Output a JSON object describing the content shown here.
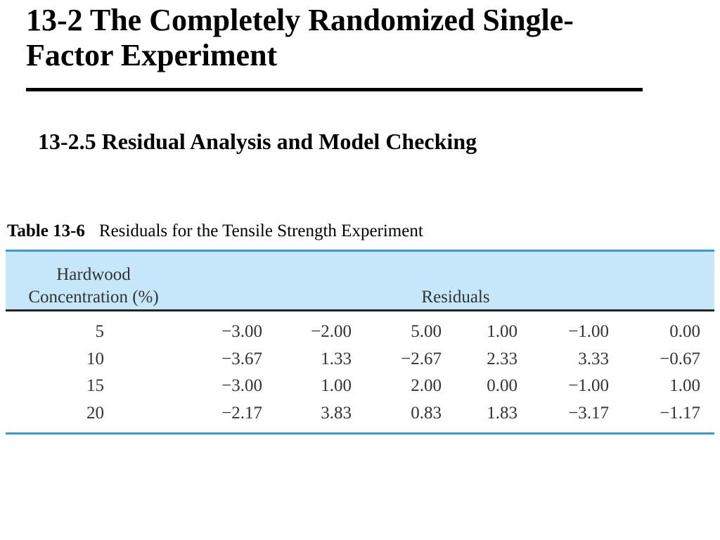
{
  "slide": {
    "title_line1": "13-2 The Completely Randomized Single-",
    "title_line2": "Factor Experiment",
    "subtitle": "13-2.5 Residual Analysis and Model Checking"
  },
  "table": {
    "number": "Table 13-6",
    "caption": "Residuals for the Tensile Strength Experiment",
    "header_col1_line1": "Hardwood",
    "header_col1_line2": "Concentration (%)",
    "header_residuals": "Residuals",
    "rows": [
      {
        "concentration": "5",
        "residuals": [
          "−3.00",
          "−2.00",
          "5.00",
          "1.00",
          "−1.00",
          "0.00"
        ]
      },
      {
        "concentration": "10",
        "residuals": [
          "−3.67",
          "1.33",
          "−2.67",
          "2.33",
          "3.33",
          "−0.67"
        ]
      },
      {
        "concentration": "15",
        "residuals": [
          "−3.00",
          "1.00",
          "2.00",
          "0.00",
          "−1.00",
          "1.00"
        ]
      },
      {
        "concentration": "20",
        "residuals": [
          "−2.17",
          "3.83",
          "0.83",
          "1.83",
          "−3.17",
          "−1.17"
        ]
      }
    ],
    "colors": {
      "header_bg": "#c6e6f9",
      "rule_blue": "#3a9bd9"
    }
  }
}
